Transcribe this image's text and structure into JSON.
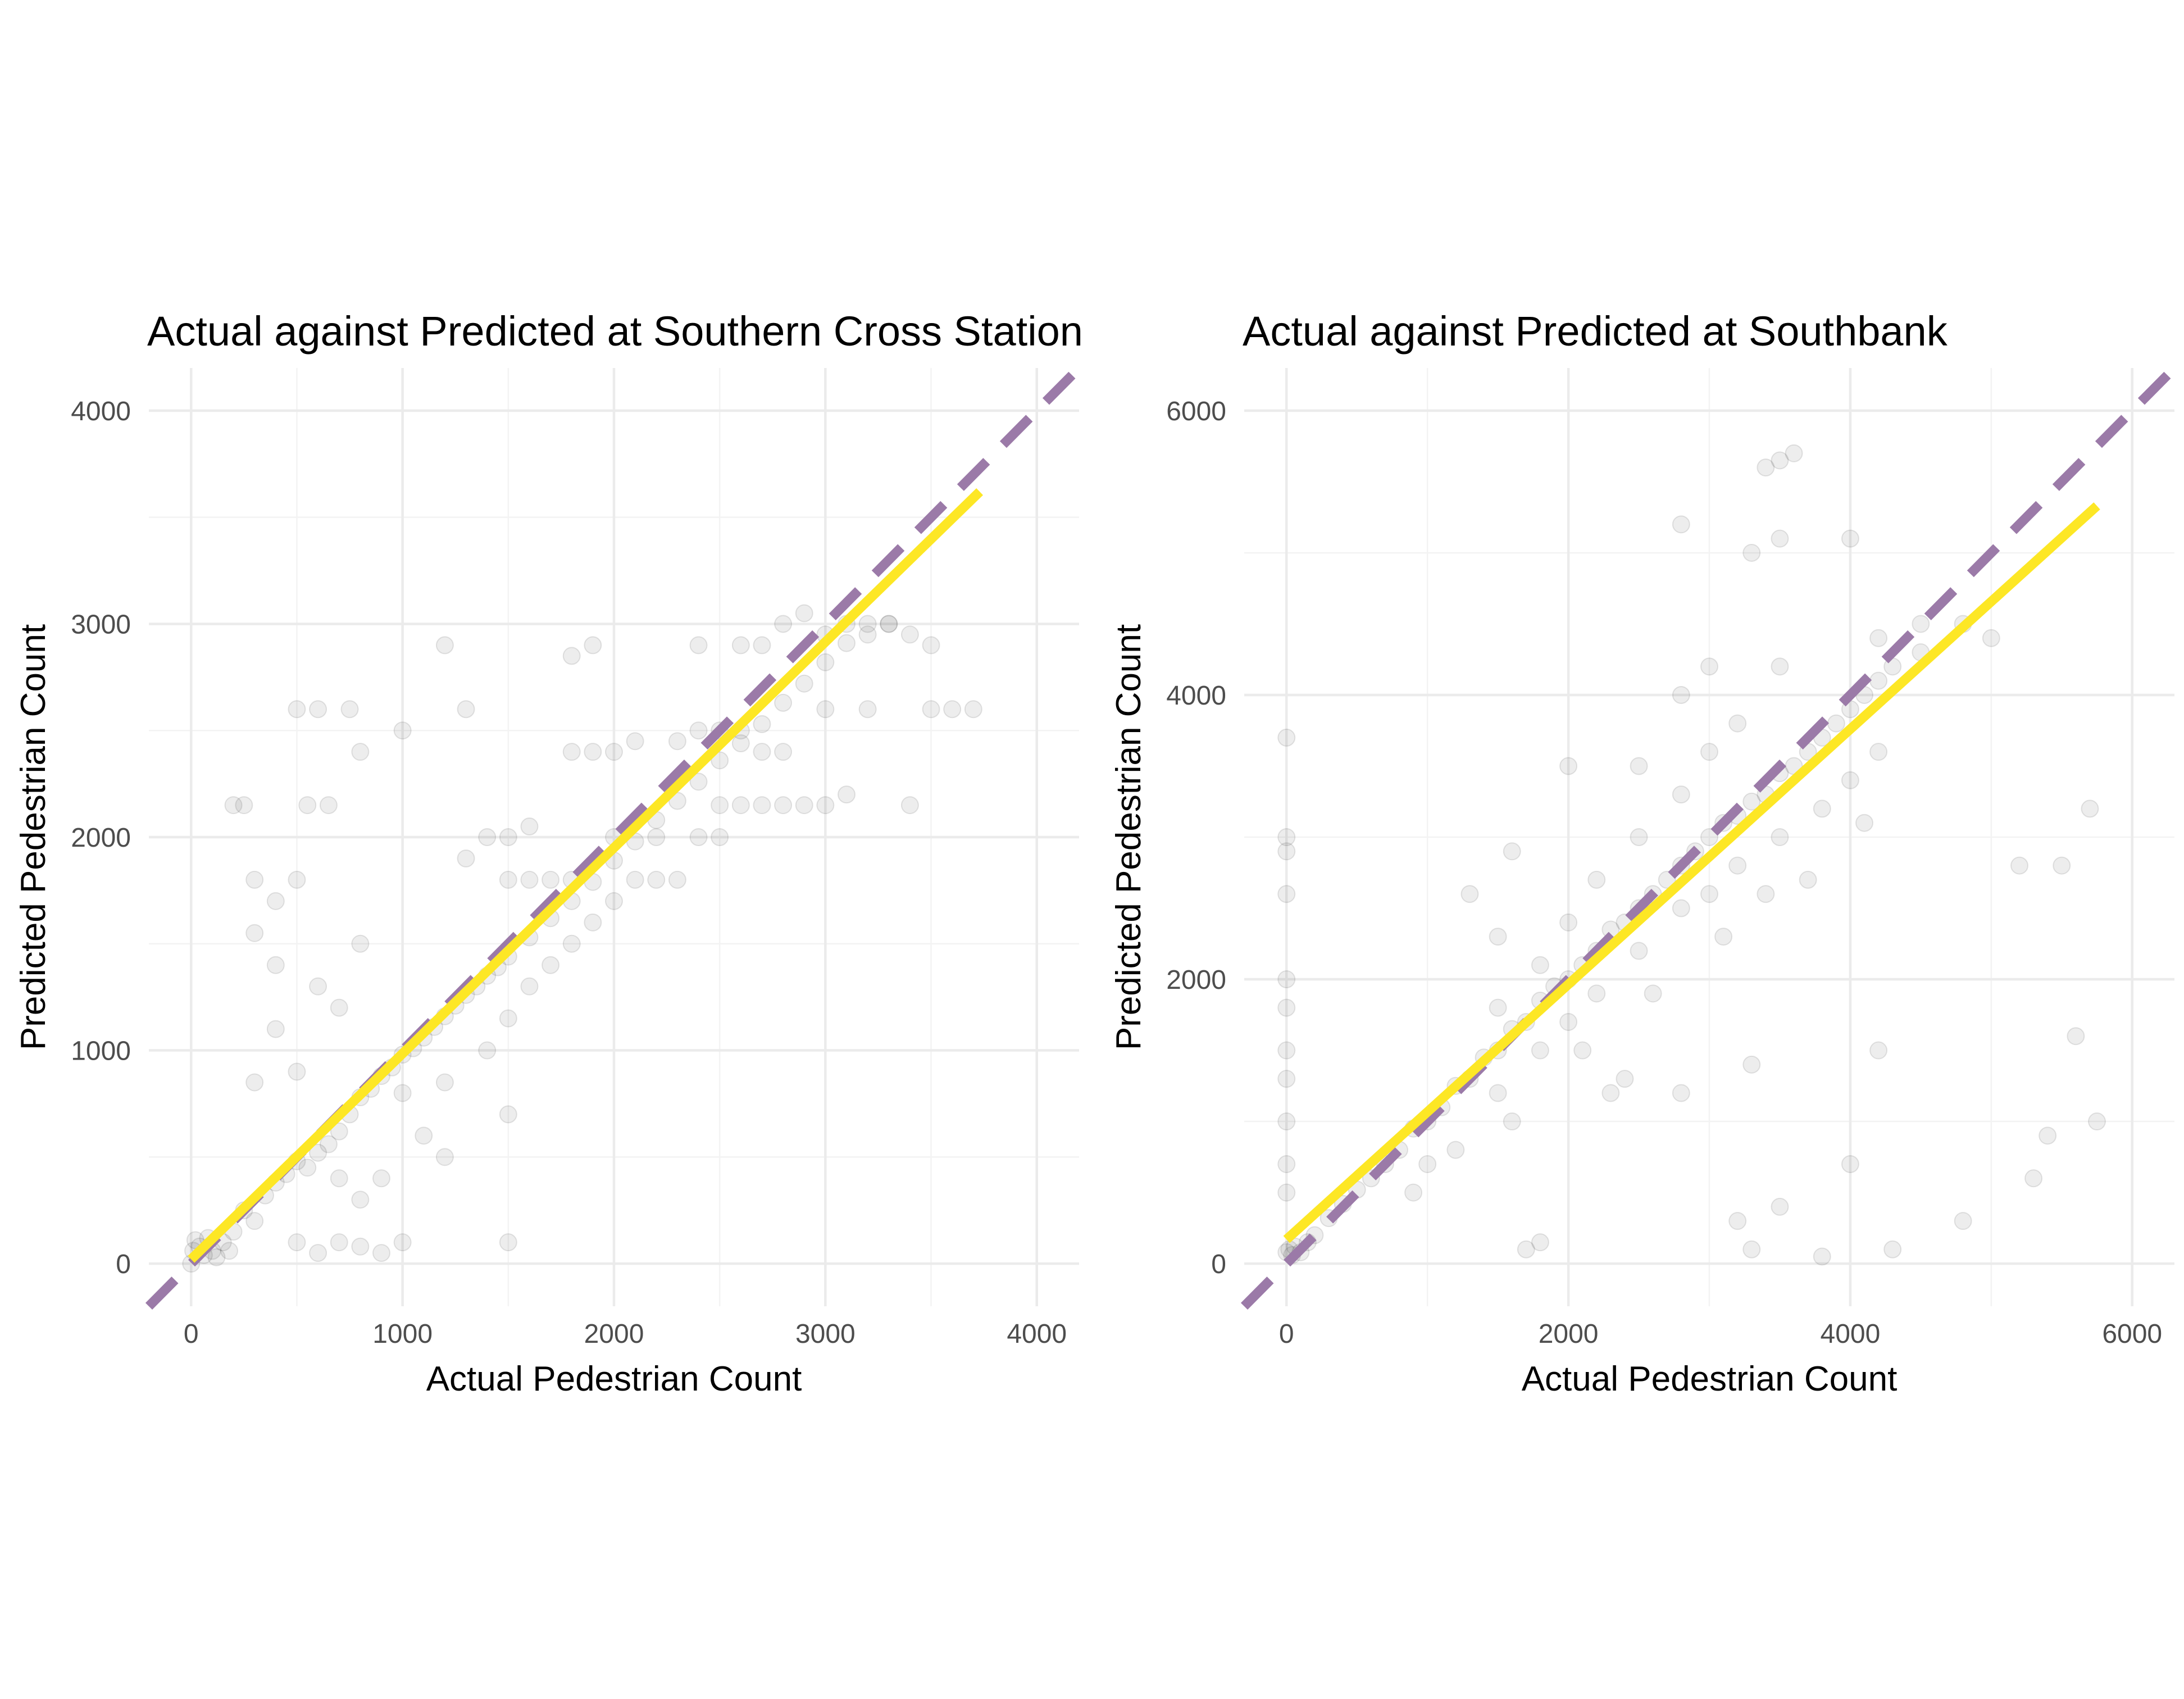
{
  "chart_data": [
    {
      "type": "scatter",
      "title": "Actual against Predicted at Southern Cross Station",
      "xlabel": "Actual Pedestrian Count",
      "ylabel": "Predicted Pedestrian Count",
      "xlim": [
        -200,
        4200
      ],
      "ylim": [
        -200,
        4200
      ],
      "x_ticks": [
        0,
        1000,
        2000,
        3000,
        4000
      ],
      "y_ticks": [
        0,
        1000,
        2000,
        3000,
        4000
      ],
      "x_tick_labels": [
        "0",
        "1000",
        "2000",
        "3000",
        "4000"
      ],
      "y_tick_labels": [
        "0",
        "1000",
        "2000",
        "3000",
        "4000"
      ],
      "grid": true,
      "reference_line": {
        "style": "dashed",
        "color": "#9b7aa8",
        "intercept": 0,
        "slope": 1
      },
      "fit_line": {
        "color": "#fde725",
        "from": [
          0,
          20
        ],
        "to": [
          3730,
          3620
        ]
      },
      "point_color": "#000000",
      "points": [
        [
          0,
          0
        ],
        [
          10,
          60
        ],
        [
          20,
          110
        ],
        [
          40,
          80
        ],
        [
          60,
          40
        ],
        [
          80,
          120
        ],
        [
          100,
          60
        ],
        [
          150,
          100
        ],
        [
          120,
          30
        ],
        [
          200,
          150
        ],
        [
          180,
          60
        ],
        [
          250,
          250
        ],
        [
          300,
          200
        ],
        [
          350,
          320
        ],
        [
          400,
          380
        ],
        [
          450,
          420
        ],
        [
          500,
          480
        ],
        [
          550,
          450
        ],
        [
          600,
          520
        ],
        [
          650,
          560
        ],
        [
          700,
          620
        ],
        [
          750,
          700
        ],
        [
          800,
          780
        ],
        [
          850,
          820
        ],
        [
          900,
          880
        ],
        [
          950,
          920
        ],
        [
          1000,
          980
        ],
        [
          1050,
          1010
        ],
        [
          1100,
          1060
        ],
        [
          1150,
          1110
        ],
        [
          1200,
          1160
        ],
        [
          1250,
          1210
        ],
        [
          1300,
          1260
        ],
        [
          1350,
          1300
        ],
        [
          1400,
          1350
        ],
        [
          1450,
          1390
        ],
        [
          1500,
          1440
        ],
        [
          1600,
          1530
        ],
        [
          1700,
          1620
        ],
        [
          1800,
          1700
        ],
        [
          1900,
          1790
        ],
        [
          2000,
          1890
        ],
        [
          2100,
          1980
        ],
        [
          2200,
          2080
        ],
        [
          2300,
          2170
        ],
        [
          2400,
          2260
        ],
        [
          2500,
          2360
        ],
        [
          2600,
          2440
        ],
        [
          2700,
          2530
        ],
        [
          2800,
          2630
        ],
        [
          2900,
          2720
        ],
        [
          3000,
          2820
        ],
        [
          3100,
          2910
        ],
        [
          3200,
          3000
        ],
        [
          3300,
          3000
        ],
        [
          500,
          900
        ],
        [
          700,
          1200
        ],
        [
          300,
          850
        ],
        [
          400,
          1100
        ],
        [
          600,
          1300
        ],
        [
          800,
          1500
        ],
        [
          200,
          2150
        ],
        [
          250,
          2150
        ],
        [
          500,
          2600
        ],
        [
          600,
          2600
        ],
        [
          750,
          2600
        ],
        [
          550,
          2150
        ],
        [
          650,
          2150
        ],
        [
          300,
          1550
        ],
        [
          400,
          1400
        ],
        [
          1000,
          800
        ],
        [
          1200,
          850
        ],
        [
          1400,
          1000
        ],
        [
          1500,
          1150
        ],
        [
          1600,
          1300
        ],
        [
          1700,
          1400
        ],
        [
          1800,
          1500
        ],
        [
          1900,
          1600
        ],
        [
          2000,
          1700
        ],
        [
          2100,
          1800
        ],
        [
          2200,
          1800
        ],
        [
          2300,
          1800
        ],
        [
          1500,
          1800
        ],
        [
          1600,
          1800
        ],
        [
          1700,
          1800
        ],
        [
          1800,
          1800
        ],
        [
          2000,
          2000
        ],
        [
          2200,
          2000
        ],
        [
          2400,
          2000
        ],
        [
          2500,
          2000
        ],
        [
          1800,
          2400
        ],
        [
          1900,
          2400
        ],
        [
          2000,
          2400
        ],
        [
          2100,
          2450
        ],
        [
          2300,
          2450
        ],
        [
          2400,
          2500
        ],
        [
          2500,
          2500
        ],
        [
          2600,
          2500
        ],
        [
          2700,
          2400
        ],
        [
          2800,
          2400
        ],
        [
          2500,
          2150
        ],
        [
          2600,
          2150
        ],
        [
          2700,
          2150
        ],
        [
          2800,
          2150
        ],
        [
          2900,
          2150
        ],
        [
          3000,
          2150
        ],
        [
          3100,
          2200
        ],
        [
          3400,
          2150
        ],
        [
          3000,
          2600
        ],
        [
          3200,
          2600
        ],
        [
          3500,
          2600
        ],
        [
          3600,
          2600
        ],
        [
          3700,
          2600
        ],
        [
          2800,
          3000
        ],
        [
          2900,
          3050
        ],
        [
          3000,
          2950
        ],
        [
          3100,
          3000
        ],
        [
          3200,
          2950
        ],
        [
          3300,
          3000
        ],
        [
          3400,
          2950
        ],
        [
          3500,
          2900
        ],
        [
          2400,
          2900
        ],
        [
          2600,
          2900
        ],
        [
          2700,
          2900
        ],
        [
          1200,
          2900
        ],
        [
          1800,
          2850
        ],
        [
          1900,
          2900
        ],
        [
          1300,
          2600
        ],
        [
          1000,
          2500
        ],
        [
          800,
          2400
        ],
        [
          400,
          1700
        ],
        [
          500,
          1800
        ],
        [
          300,
          1800
        ],
        [
          1500,
          100
        ],
        [
          1000,
          100
        ],
        [
          900,
          50
        ],
        [
          800,
          80
        ],
        [
          700,
          100
        ],
        [
          600,
          50
        ],
        [
          500,
          100
        ],
        [
          1500,
          2000
        ],
        [
          1400,
          2000
        ],
        [
          1300,
          1900
        ],
        [
          1600,
          2050
        ],
        [
          1500,
          700
        ],
        [
          1200,
          500
        ],
        [
          1100,
          600
        ],
        [
          900,
          400
        ],
        [
          800,
          300
        ],
        [
          700,
          400
        ]
      ]
    },
    {
      "type": "scatter",
      "title": "Actual against Predicted at Southbank",
      "xlabel": "Actual Pedestrian Count",
      "ylabel": "Predicted Pedestrian Count",
      "xlim": [
        -300,
        6300
      ],
      "ylim": [
        -300,
        6300
      ],
      "x_ticks": [
        0,
        2000,
        4000,
        6000
      ],
      "y_ticks": [
        0,
        2000,
        4000,
        6000
      ],
      "x_tick_labels": [
        "0",
        "2000",
        "4000",
        "6000"
      ],
      "y_tick_labels": [
        "0",
        "2000",
        "4000",
        "6000"
      ],
      "grid": true,
      "reference_line": {
        "style": "dashed",
        "color": "#9b7aa8",
        "intercept": 0,
        "slope": 1
      },
      "fit_line": {
        "color": "#fde725",
        "from": [
          0,
          170
        ],
        "to": [
          5750,
          5330
        ]
      },
      "point_color": "#000000",
      "points": [
        [
          0,
          80
        ],
        [
          20,
          100
        ],
        [
          40,
          60
        ],
        [
          60,
          120
        ],
        [
          100,
          80
        ],
        [
          150,
          150
        ],
        [
          200,
          200
        ],
        [
          300,
          320
        ],
        [
          400,
          420
        ],
        [
          500,
          520
        ],
        [
          600,
          600
        ],
        [
          700,
          700
        ],
        [
          800,
          800
        ],
        [
          900,
          950
        ],
        [
          1000,
          1000
        ],
        [
          1100,
          1100
        ],
        [
          1200,
          1250
        ],
        [
          1300,
          1300
        ],
        [
          1400,
          1450
        ],
        [
          1500,
          1500
        ],
        [
          1600,
          1650
        ],
        [
          1700,
          1700
        ],
        [
          1800,
          1850
        ],
        [
          1900,
          1950
        ],
        [
          2000,
          2000
        ],
        [
          2100,
          2100
        ],
        [
          2200,
          2200
        ],
        [
          2300,
          2350
        ],
        [
          2400,
          2400
        ],
        [
          2500,
          2500
        ],
        [
          2600,
          2600
        ],
        [
          2700,
          2700
        ],
        [
          2800,
          2800
        ],
        [
          2900,
          2900
        ],
        [
          3000,
          3000
        ],
        [
          3100,
          3100
        ],
        [
          3200,
          3150
        ],
        [
          3300,
          3250
        ],
        [
          3400,
          3300
        ],
        [
          3500,
          3450
        ],
        [
          3600,
          3500
        ],
        [
          3700,
          3600
        ],
        [
          3800,
          3700
        ],
        [
          3900,
          3800
        ],
        [
          4000,
          3900
        ],
        [
          4100,
          4000
        ],
        [
          4200,
          4100
        ],
        [
          4300,
          4200
        ],
        [
          4500,
          4300
        ],
        [
          4800,
          4500
        ],
        [
          1500,
          1200
        ],
        [
          1800,
          1500
        ],
        [
          2000,
          1700
        ],
        [
          2200,
          1900
        ],
        [
          2500,
          2200
        ],
        [
          2800,
          2500
        ],
        [
          3000,
          2600
        ],
        [
          3200,
          2800
        ],
        [
          3500,
          3000
        ],
        [
          3800,
          3200
        ],
        [
          4000,
          3400
        ],
        [
          4200,
          3600
        ],
        [
          1500,
          1800
        ],
        [
          1800,
          2100
        ],
        [
          2000,
          2400
        ],
        [
          2200,
          2700
        ],
        [
          2500,
          3000
        ],
        [
          2800,
          3300
        ],
        [
          3000,
          3600
        ],
        [
          3200,
          3800
        ],
        [
          3500,
          4200
        ],
        [
          2500,
          3500
        ],
        [
          2800,
          4000
        ],
        [
          3000,
          4200
        ],
        [
          3300,
          5000
        ],
        [
          3500,
          5100
        ],
        [
          2800,
          5200
        ],
        [
          3500,
          5650
        ],
        [
          3600,
          5700
        ],
        [
          3400,
          5600
        ],
        [
          4000,
          5100
        ],
        [
          4200,
          4400
        ],
        [
          4500,
          4500
        ],
        [
          5000,
          4400
        ],
        [
          5200,
          2800
        ],
        [
          5500,
          2800
        ],
        [
          5700,
          3200
        ],
        [
          5400,
          900
        ],
        [
          5600,
          1600
        ],
        [
          5750,
          1000
        ],
        [
          5300,
          600
        ],
        [
          4200,
          1500
        ],
        [
          4800,
          300
        ],
        [
          4000,
          700
        ],
        [
          4300,
          100
        ],
        [
          3300,
          100
        ],
        [
          3200,
          300
        ],
        [
          3500,
          400
        ],
        [
          3800,
          50
        ],
        [
          1700,
          100
        ],
        [
          1800,
          150
        ],
        [
          2400,
          1300
        ],
        [
          2800,
          1200
        ],
        [
          3300,
          1400
        ],
        [
          0,
          1000
        ],
        [
          0,
          1300
        ],
        [
          0,
          1500
        ],
        [
          0,
          1800
        ],
        [
          0,
          2000
        ],
        [
          0,
          2600
        ],
        [
          0,
          2900
        ],
        [
          0,
          3000
        ],
        [
          0,
          3700
        ],
        [
          0,
          500
        ],
        [
          0,
          700
        ],
        [
          1300,
          2600
        ],
        [
          1600,
          2900
        ],
        [
          2000,
          3500
        ],
        [
          1500,
          2300
        ],
        [
          1200,
          800
        ],
        [
          1000,
          700
        ],
        [
          900,
          500
        ],
        [
          1600,
          1000
        ],
        [
          2100,
          1500
        ],
        [
          2300,
          1200
        ],
        [
          2600,
          1900
        ],
        [
          3100,
          2300
        ],
        [
          3400,
          2600
        ],
        [
          3700,
          2700
        ],
        [
          4100,
          3100
        ]
      ]
    }
  ]
}
